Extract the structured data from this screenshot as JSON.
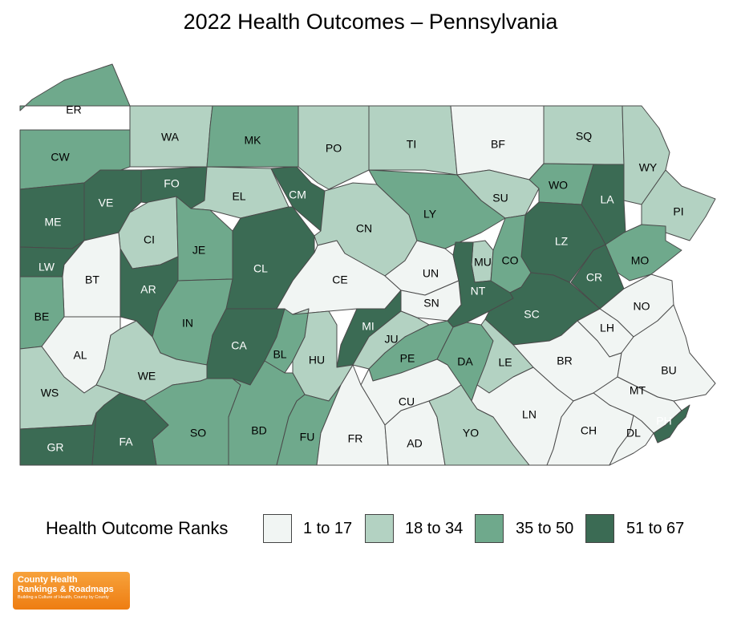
{
  "title": "2022 Health Outcomes – Pennsylvania",
  "colors": {
    "q1": "#f1f5f3",
    "q2": "#b3d2c2",
    "q3": "#6fa98c",
    "q4": "#3b6b54",
    "border": "#4a4a4a"
  },
  "counties": [
    {
      "code": "ER",
      "q": "q3"
    },
    {
      "code": "WA",
      "q": "q2"
    },
    {
      "code": "MK",
      "q": "q3"
    },
    {
      "code": "PO",
      "q": "q2"
    },
    {
      "code": "TI",
      "q": "q2"
    },
    {
      "code": "BF",
      "q": "q1"
    },
    {
      "code": "SQ",
      "q": "q2"
    },
    {
      "code": "WY",
      "q": "q2"
    },
    {
      "code": "CW",
      "q": "q3"
    },
    {
      "code": "VE",
      "q": "q4"
    },
    {
      "code": "FO",
      "q": "q4"
    },
    {
      "code": "EL",
      "q": "q2"
    },
    {
      "code": "CM",
      "q": "q4"
    },
    {
      "code": "CN",
      "q": "q2"
    },
    {
      "code": "LY",
      "q": "q3"
    },
    {
      "code": "SU",
      "q": "q2"
    },
    {
      "code": "WO",
      "q": "q3"
    },
    {
      "code": "LA",
      "q": "q4"
    },
    {
      "code": "PI",
      "q": "q2"
    },
    {
      "code": "ME",
      "q": "q4"
    },
    {
      "code": "CI",
      "q": "q2"
    },
    {
      "code": "JE",
      "q": "q3"
    },
    {
      "code": "CL",
      "q": "q4"
    },
    {
      "code": "LZ",
      "q": "q4"
    },
    {
      "code": "CE",
      "q": "q1"
    },
    {
      "code": "UN",
      "q": "q1"
    },
    {
      "code": "MU",
      "q": "q2"
    },
    {
      "code": "CO",
      "q": "q3"
    },
    {
      "code": "MO",
      "q": "q3"
    },
    {
      "code": "LW",
      "q": "q4"
    },
    {
      "code": "BT",
      "q": "q1"
    },
    {
      "code": "AR",
      "q": "q4"
    },
    {
      "code": "NT",
      "q": "q4"
    },
    {
      "code": "CR",
      "q": "q4"
    },
    {
      "code": "SN",
      "q": "q1"
    },
    {
      "code": "BE",
      "q": "q3"
    },
    {
      "code": "IN",
      "q": "q3"
    },
    {
      "code": "MI",
      "q": "q4"
    },
    {
      "code": "SC",
      "q": "q4"
    },
    {
      "code": "NO",
      "q": "q1"
    },
    {
      "code": "LH",
      "q": "q1"
    },
    {
      "code": "AL",
      "q": "q1"
    },
    {
      "code": "CA",
      "q": "q4"
    },
    {
      "code": "BL",
      "q": "q3"
    },
    {
      "code": "HU",
      "q": "q2"
    },
    {
      "code": "JU",
      "q": "q2"
    },
    {
      "code": "PE",
      "q": "q3"
    },
    {
      "code": "DA",
      "q": "q3"
    },
    {
      "code": "LE",
      "q": "q2"
    },
    {
      "code": "BR",
      "q": "q1"
    },
    {
      "code": "BU",
      "q": "q1"
    },
    {
      "code": "WE",
      "q": "q2"
    },
    {
      "code": "WS",
      "q": "q2"
    },
    {
      "code": "CU",
      "q": "q1"
    },
    {
      "code": "MT",
      "q": "q1"
    },
    {
      "code": "LN",
      "q": "q1"
    },
    {
      "code": "SO",
      "q": "q3"
    },
    {
      "code": "BD",
      "q": "q3"
    },
    {
      "code": "FU",
      "q": "q3"
    },
    {
      "code": "FR",
      "q": "q1"
    },
    {
      "code": "AD",
      "q": "q1"
    },
    {
      "code": "YO",
      "q": "q2"
    },
    {
      "code": "CH",
      "q": "q1"
    },
    {
      "code": "DL",
      "q": "q1"
    },
    {
      "code": "PH",
      "q": "q4"
    },
    {
      "code": "GR",
      "q": "q4"
    },
    {
      "code": "FA",
      "q": "q4"
    }
  ],
  "legend": {
    "title": "Health Outcome Ranks",
    "items": [
      {
        "label": "1 to 17",
        "q": "q1"
      },
      {
        "label": "18 to 34",
        "q": "q2"
      },
      {
        "label": "35 to 50",
        "q": "q3"
      },
      {
        "label": "51 to 67",
        "q": "q4"
      }
    ]
  },
  "logo": {
    "line1": "County Health",
    "line2": "Rankings & Roadmaps",
    "tagline": "Building a Culture of Health, County by County"
  }
}
